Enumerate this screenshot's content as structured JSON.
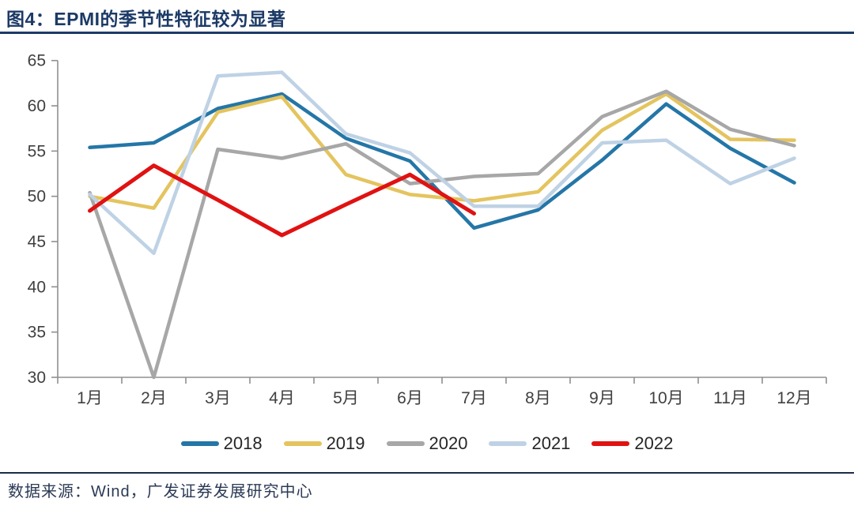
{
  "header": {
    "title": "图4：EPMI的季节性特征较为显著"
  },
  "footer": {
    "source": "数据来源：Wind，广发证券发展研究中心"
  },
  "colors": {
    "title_navy": "#1c3a66",
    "axis_line": "#8f8f8f",
    "tick_label": "#404040",
    "divider": "#1d2c49"
  },
  "chart_data": {
    "type": "line",
    "title": "图4：EPMI的季节性特征较为显著",
    "categories": [
      "1月",
      "2月",
      "3月",
      "4月",
      "5月",
      "6月",
      "7月",
      "8月",
      "9月",
      "10月",
      "11月",
      "12月"
    ],
    "series": [
      {
        "name": "2018",
        "color": "#2476a7",
        "values": [
          55.4,
          55.9,
          59.7,
          61.3,
          56.4,
          53.9,
          46.5,
          48.5,
          54.0,
          60.2,
          55.3,
          51.5
        ]
      },
      {
        "name": "2019",
        "color": "#e4c45f",
        "values": [
          50.0,
          48.7,
          59.3,
          61.0,
          52.4,
          50.2,
          49.5,
          50.5,
          57.3,
          61.3,
          56.3,
          56.2
        ]
      },
      {
        "name": "2020",
        "color": "#a7a7a7",
        "values": [
          50.4,
          30.0,
          55.2,
          54.2,
          55.8,
          51.4,
          52.2,
          52.5,
          58.8,
          61.6,
          57.4,
          55.6
        ]
      },
      {
        "name": "2021",
        "color": "#bfd2e5",
        "values": [
          50.2,
          43.7,
          63.3,
          63.7,
          56.9,
          54.8,
          48.9,
          48.9,
          55.9,
          56.2,
          51.4,
          54.2
        ]
      },
      {
        "name": "2022",
        "color": "#e01212",
        "values": [
          48.4,
          53.4,
          49.6,
          45.7,
          49.1,
          52.4,
          48.1,
          null,
          null,
          null,
          null,
          null
        ]
      }
    ],
    "xlabel": "",
    "ylabel": "",
    "ylim": [
      30,
      65
    ],
    "ytick_step": 5,
    "grid": false,
    "legend_position": "bottom"
  }
}
